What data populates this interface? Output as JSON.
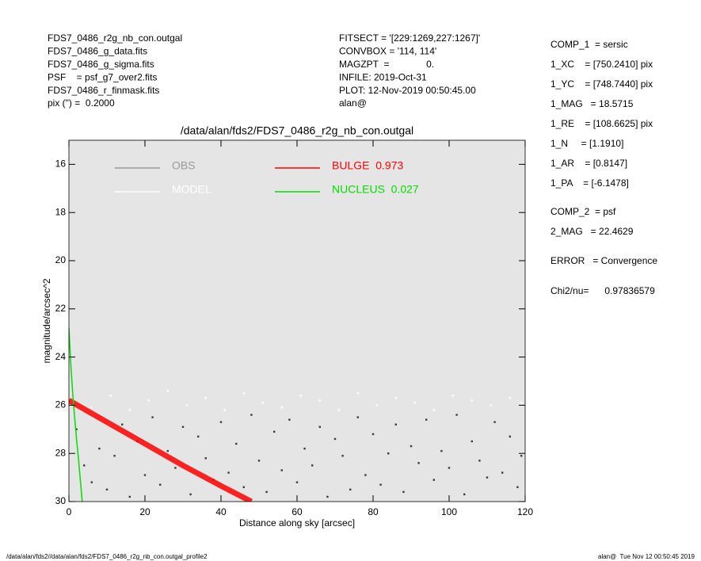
{
  "header": {
    "left": [
      "FDS7_0486_r2g_nb_con.outgal",
      "FDS7_0486_g_data.fits",
      "FDS7_0486_g_sigma.fits",
      "PSF    = psf_g7_over2.fits",
      "FDS7_0486_r_finmask.fits",
      "pix (\") =  0.2000"
    ],
    "middle": [
      "FITSECT = '[229:1269,227:1267]'",
      "CONVBOX = '114, 114'",
      "MAGZPT  =              0.",
      "INFILE: 2019-Oct-31",
      "PLOT: 12-Nov-2019 00:50:45.00",
      "alan@"
    ],
    "right": [
      "COMP_1  = sersic",
      "1_XC    = [750.2410] pix",
      "1_YC    = [748.7440] pix",
      "1_MAG   = 18.5715",
      "1_RE    = [108.6625] pix",
      "1_N     = [1.1910]",
      "1_AR    = [0.8147]",
      "1_PA    = [-6.1478]",
      "COMP_2  = psf",
      "2_MAG   = 22.4629",
      "ERROR   = Convergence",
      "Chi2/nu=      0.97836579"
    ]
  },
  "footer": {
    "left": "/data/alan/fds2//data/alan/fds2/FDS7_0486_r2g_nb_con.outgal_profile2",
    "right": "alan@  Tue Nov 12 00:50:45 2019"
  },
  "chart_data": {
    "type": "scatter",
    "title": "/data/alan/fds2/FDS7_0486_r2g_nb_con.outgal",
    "x_label": "Distance along sky [arcsec]",
    "y_label": "magnitude/arcsec^2",
    "xlim": [
      0,
      120
    ],
    "xticks": [
      0,
      20,
      40,
      60,
      80,
      100,
      120
    ],
    "ylim": [
      15,
      30
    ],
    "yticks": [
      16,
      18,
      20,
      22,
      24,
      26,
      28,
      30
    ],
    "y_inverted": true,
    "background": "#e5e5e5",
    "series": [
      {
        "name": "OBS",
        "color": "#999999",
        "point_color": "#3a3a3a",
        "mode": "points",
        "x": [
          2,
          4,
          6,
          8,
          10,
          12,
          14,
          16,
          18,
          20,
          22,
          24,
          26,
          28,
          30,
          32,
          34,
          36,
          38,
          40,
          42,
          44,
          46,
          48,
          50,
          52,
          54,
          56,
          58,
          60,
          62,
          64,
          66,
          68,
          70,
          72,
          74,
          76,
          78,
          80,
          82,
          84,
          86,
          88,
          90,
          92,
          94,
          96,
          98,
          100,
          102,
          104,
          106,
          108,
          110,
          112,
          114,
          116,
          118,
          119
        ],
        "values": [
          27,
          28.5,
          29.2,
          27.8,
          29.5,
          28.1,
          26.8,
          29.8,
          27.5,
          28.9,
          26.5,
          29.3,
          27.9,
          28.6,
          26.9,
          29.7,
          27.3,
          28.2,
          29.1,
          26.7,
          28.8,
          27.6,
          29.4,
          26.4,
          28.3,
          29.6,
          27.1,
          28.7,
          26.6,
          29.2,
          27.8,
          28.5,
          26.9,
          29.8,
          27.4,
          28.1,
          29.5,
          26.5,
          28.9,
          27.2,
          29.3,
          28,
          26.8,
          29.6,
          27.7,
          28.4,
          26.6,
          29.1,
          27.9,
          28.6,
          26.4,
          29.7,
          27.5,
          28.3,
          29,
          26.7,
          28.8,
          27.3,
          29.4,
          28.1
        ]
      },
      {
        "name": "MODEL",
        "color": "#ffffff",
        "point_color": "#ffffff",
        "mode": "points",
        "x": [
          1,
          6,
          11,
          16,
          21,
          26,
          31,
          36,
          41,
          46,
          51,
          56,
          61,
          66,
          71,
          76,
          81,
          86,
          91,
          96,
          101,
          106,
          111,
          116,
          119
        ],
        "values": [
          25.5,
          26.1,
          25.6,
          26.2,
          25.8,
          25.4,
          26,
          25.7,
          26.2,
          25.5,
          25.9,
          26.1,
          25.6,
          25.8,
          26.2,
          25.5,
          26,
          25.7,
          25.9,
          26.2,
          25.6,
          25.8,
          26,
          25.7,
          25.9
        ]
      },
      {
        "name": "BULGE  0.973",
        "color": "#ff0000",
        "mode": "line",
        "x": [
          0,
          10,
          20,
          30,
          40,
          48
        ],
        "values": [
          25.8,
          26.7,
          27.6,
          28.5,
          29.35,
          30
        ]
      },
      {
        "name": "NUCLEUS  0.027",
        "color": "#00dd00",
        "mode": "line",
        "x": [
          0,
          0.5,
          1,
          1.5,
          2,
          2.5,
          3,
          3.5
        ],
        "values": [
          22.8,
          24.3,
          25.5,
          26.5,
          27.4,
          28.2,
          29.1,
          30
        ]
      }
    ]
  }
}
